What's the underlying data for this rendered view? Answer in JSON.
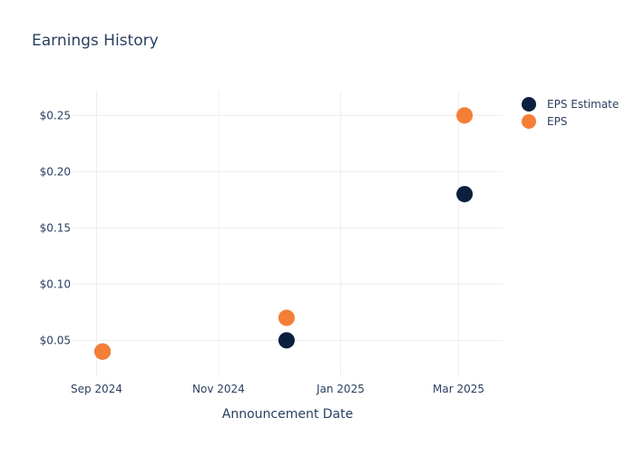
{
  "chart_data": {
    "type": "scatter",
    "title": "Earnings History",
    "xlabel": "Announcement Date",
    "ylabel": "",
    "x_axis": {
      "type": "date",
      "range": [
        "2024-08-20",
        "2025-03-23"
      ],
      "ticks": [
        {
          "date": "2024-09-01",
          "label": "Sep 2024"
        },
        {
          "date": "2024-11-01",
          "label": "Nov 2024"
        },
        {
          "date": "2025-01-01",
          "label": "Jan 2025"
        },
        {
          "date": "2025-03-01",
          "label": "Mar 2025"
        }
      ]
    },
    "y_axis": {
      "range": [
        0.018,
        0.272
      ],
      "ticks": [
        {
          "value": 0.05,
          "label": "$0.05"
        },
        {
          "value": 0.1,
          "label": "$0.10"
        },
        {
          "value": 0.15,
          "label": "$0.15"
        },
        {
          "value": 0.2,
          "label": "$0.20"
        },
        {
          "value": 0.25,
          "label": "$0.25"
        }
      ]
    },
    "grid": true,
    "legend_position": "top-right",
    "series": [
      {
        "name": "EPS Estimate",
        "color": "#0b1f3f",
        "points": [
          {
            "x": "2024-09-04",
            "y": 0.04
          },
          {
            "x": "2024-12-05",
            "y": 0.05
          },
          {
            "x": "2025-03-04",
            "y": 0.18
          }
        ]
      },
      {
        "name": "EPS",
        "color": "#f47e35",
        "points": [
          {
            "x": "2024-09-04",
            "y": 0.04
          },
          {
            "x": "2024-12-05",
            "y": 0.07
          },
          {
            "x": "2025-03-04",
            "y": 0.25
          }
        ]
      }
    ]
  }
}
